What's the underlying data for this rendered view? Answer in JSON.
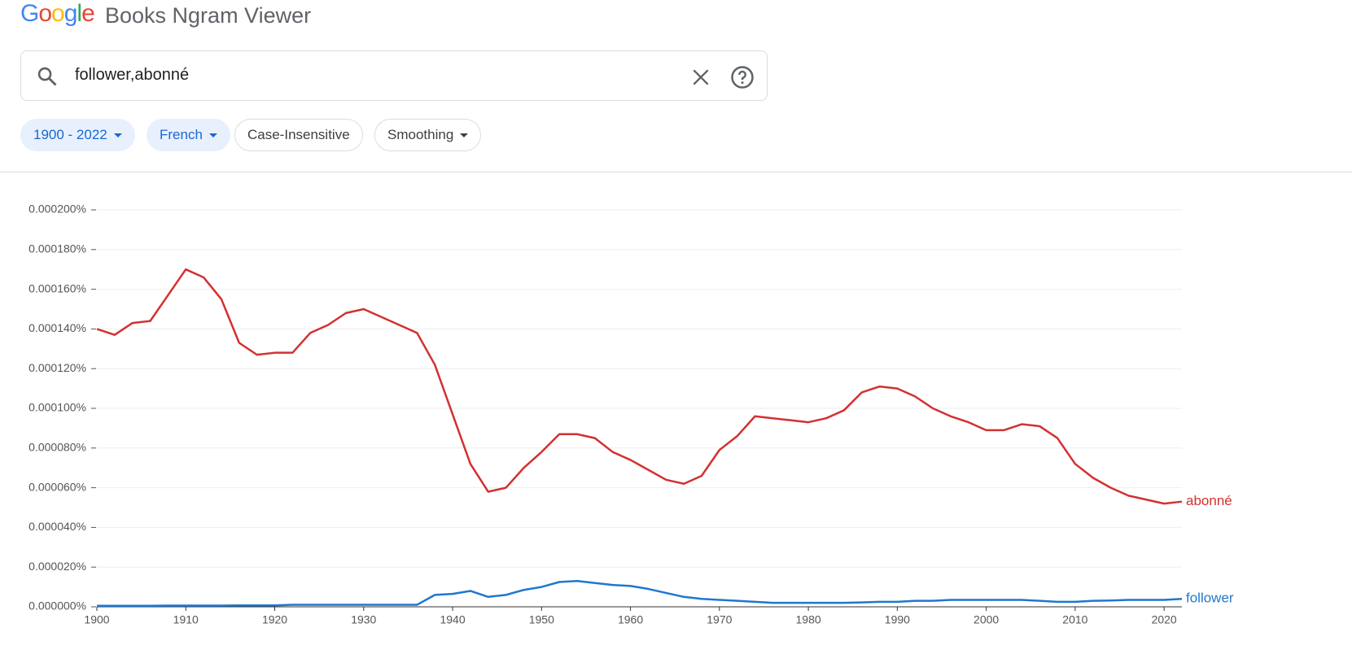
{
  "header": {
    "logo": "Google",
    "title": "Books Ngram Viewer"
  },
  "search": {
    "query": "follower,abonné"
  },
  "filters": [
    "1900 - 2022",
    "French",
    "Case-Insensitive",
    "Smoothing"
  ],
  "chart_data": {
    "type": "line",
    "x": [
      1900,
      1902,
      1904,
      1906,
      1908,
      1910,
      1912,
      1914,
      1916,
      1918,
      1920,
      1922,
      1924,
      1926,
      1928,
      1930,
      1932,
      1934,
      1936,
      1938,
      1940,
      1942,
      1944,
      1946,
      1948,
      1950,
      1952,
      1954,
      1956,
      1958,
      1960,
      1962,
      1964,
      1966,
      1968,
      1970,
      1972,
      1974,
      1976,
      1978,
      1980,
      1982,
      1984,
      1986,
      1988,
      1990,
      1992,
      1994,
      1996,
      1998,
      2000,
      2002,
      2004,
      2006,
      2008,
      2010,
      2012,
      2014,
      2016,
      2018,
      2020,
      2022
    ],
    "series": [
      {
        "name": "abonné",
        "color": "#d23130",
        "values": [
          0.00014,
          0.000137,
          0.000143,
          0.000144,
          0.000157,
          0.00017,
          0.000166,
          0.000155,
          0.000133,
          0.000127,
          0.000128,
          0.000128,
          0.000138,
          0.000142,
          0.000148,
          0.00015,
          0.000146,
          0.000142,
          0.000138,
          0.000122,
          9.7e-05,
          7.2e-05,
          5.8e-05,
          6e-05,
          7e-05,
          7.8e-05,
          8.7e-05,
          8.7e-05,
          8.5e-05,
          7.8e-05,
          7.4e-05,
          6.9e-05,
          6.4e-05,
          6.2e-05,
          6.6e-05,
          7.9e-05,
          8.6e-05,
          9.6e-05,
          9.5e-05,
          9.4e-05,
          9.3e-05,
          9.5e-05,
          9.9e-05,
          0.000108,
          0.000111,
          0.00011,
          0.000106,
          0.0001,
          9.6e-05,
          9.3e-05,
          8.9e-05,
          8.9e-05,
          9.2e-05,
          9.1e-05,
          8.5e-05,
          7.2e-05,
          6.5e-05,
          6e-05,
          5.6e-05,
          5.4e-05,
          5.2e-05,
          5.3e-05
        ]
      },
      {
        "name": "follower",
        "color": "#1f77d0",
        "values": [
          5e-07,
          5e-07,
          5e-07,
          5e-07,
          6e-07,
          6e-07,
          6e-07,
          6e-07,
          7e-07,
          7e-07,
          7e-07,
          1e-06,
          1e-06,
          1e-06,
          1e-06,
          1e-06,
          1e-06,
          1e-06,
          1e-06,
          6e-06,
          6.5e-06,
          8e-06,
          5e-06,
          6e-06,
          8.5e-06,
          1e-05,
          1.25e-05,
          1.3e-05,
          1.2e-05,
          1.1e-05,
          1.05e-05,
          9e-06,
          7e-06,
          5e-06,
          4e-06,
          3.5e-06,
          3e-06,
          2.5e-06,
          2e-06,
          2e-06,
          2e-06,
          2e-06,
          2e-06,
          2.2e-06,
          2.5e-06,
          2.5e-06,
          3e-06,
          3e-06,
          3.5e-06,
          3.5e-06,
          3.5e-06,
          3.5e-06,
          3.5e-06,
          3e-06,
          2.5e-06,
          2.5e-06,
          3e-06,
          3.2e-06,
          3.5e-06,
          3.5e-06,
          3.5e-06,
          4e-06
        ]
      }
    ],
    "xlim": [
      1900,
      2022
    ],
    "xticks": [
      1900,
      1910,
      1920,
      1930,
      1940,
      1950,
      1960,
      1970,
      1980,
      1990,
      2000,
      2010,
      2020
    ],
    "ylim": [
      0,
      0.0002
    ],
    "yticks": [
      {
        "value": 0,
        "label": "0.000000%"
      },
      {
        "value": 2e-05,
        "label": "0.000020%"
      },
      {
        "value": 4e-05,
        "label": "0.000040%"
      },
      {
        "value": 6e-05,
        "label": "0.000060%"
      },
      {
        "value": 8e-05,
        "label": "0.000080%"
      },
      {
        "value": 0.0001,
        "label": "0.000100%"
      },
      {
        "value": 0.00012,
        "label": "0.000120%"
      },
      {
        "value": 0.00014,
        "label": "0.000140%"
      },
      {
        "value": 0.00016,
        "label": "0.000160%"
      },
      {
        "value": 0.00018,
        "label": "0.000180%"
      },
      {
        "value": 0.0002,
        "label": "0.000200%"
      }
    ],
    "grid": true
  }
}
